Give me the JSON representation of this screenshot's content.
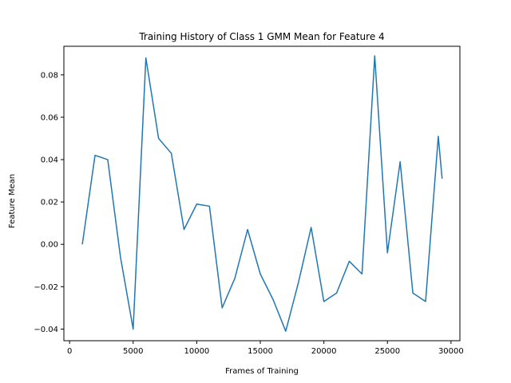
{
  "chart_data": {
    "type": "line",
    "title": "Training History of Class 1 GMM Mean for Feature 4",
    "xlabel": "Frames of Training",
    "ylabel": "Feature Mean",
    "xlim": [
      -450,
      30700
    ],
    "ylim": [
      -0.0455,
      0.0935
    ],
    "xticks": [
      0,
      5000,
      10000,
      15000,
      20000,
      25000,
      30000
    ],
    "yticks": [
      -0.04,
      -0.02,
      0.0,
      0.02,
      0.04,
      0.06,
      0.08
    ],
    "ytick_labels": [
      "−0.04",
      "−0.02",
      "0.00",
      "0.02",
      "0.04",
      "0.06",
      "0.08"
    ],
    "grid": false,
    "line_color": "#1f77b4",
    "series": [
      {
        "x": [
          1000,
          2000,
          3000,
          4000,
          5000,
          6000,
          7000,
          8000,
          9000,
          10000,
          11000,
          12000,
          13000,
          14000,
          15000,
          16000,
          17000,
          18000,
          19000,
          20000,
          21000,
          22000,
          23000,
          24000,
          25000,
          26000,
          27000,
          28000,
          29000,
          29300
        ],
        "values": [
          0.0,
          0.042,
          0.04,
          -0.006,
          -0.04,
          0.088,
          0.05,
          0.043,
          0.007,
          0.019,
          0.018,
          -0.03,
          -0.016,
          0.007,
          -0.014,
          -0.026,
          -0.041,
          -0.018,
          0.008,
          -0.027,
          -0.023,
          -0.008,
          -0.014,
          0.089,
          -0.004,
          0.039,
          -0.023,
          -0.027,
          0.051,
          0.031
        ]
      }
    ]
  }
}
